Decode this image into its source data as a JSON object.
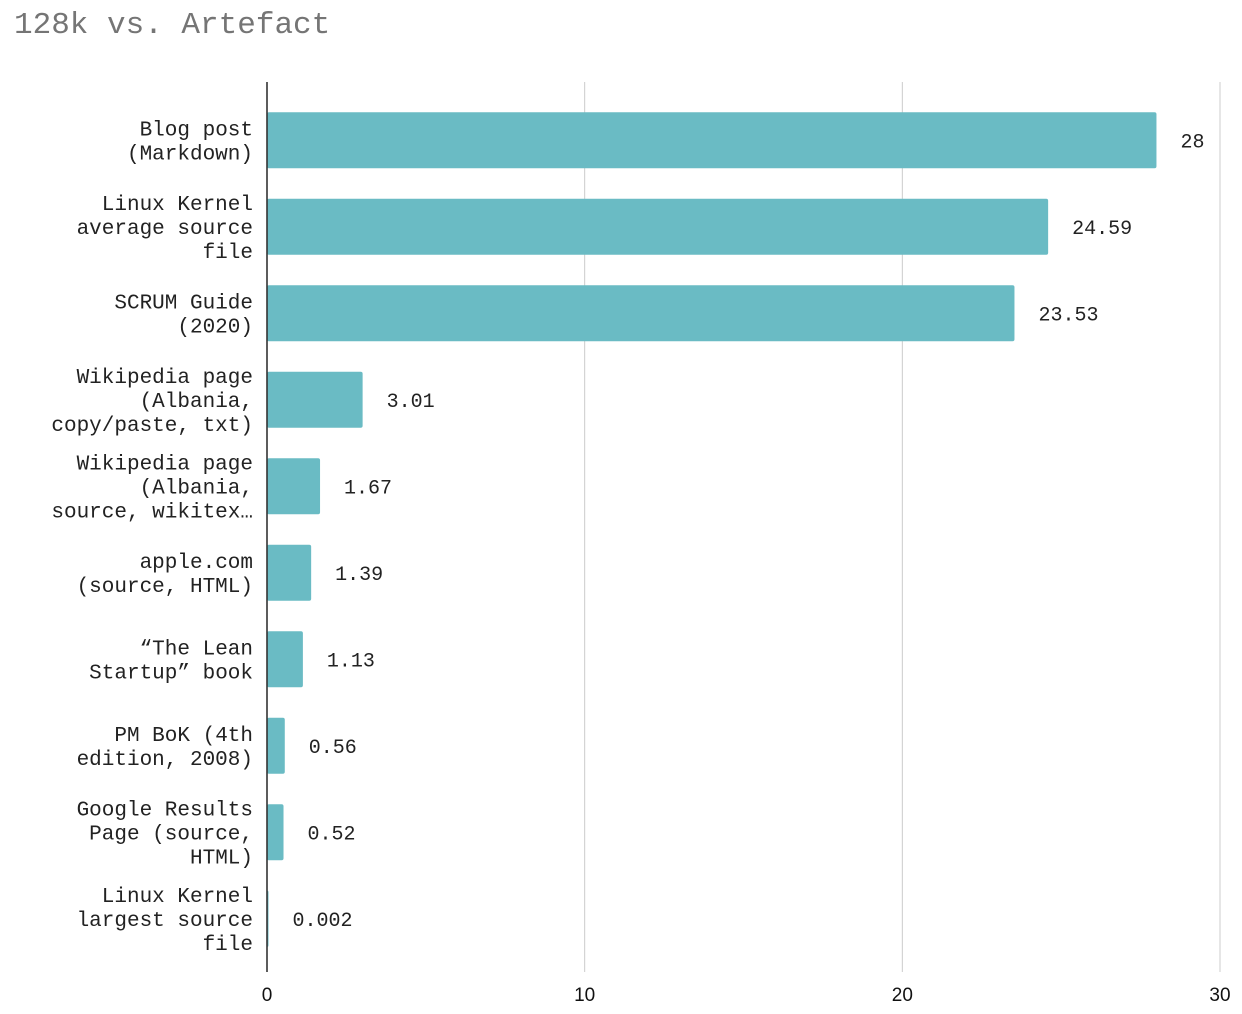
{
  "chart_data": {
    "type": "bar",
    "orientation": "horizontal",
    "title": "128k vs. Artefact",
    "xlabel": "",
    "ylabel": "",
    "xlim": [
      0,
      30
    ],
    "x_ticks": [
      "0",
      "10",
      "20",
      "30"
    ],
    "grid": "vertical",
    "legend": "none",
    "bar_color": "#6abbc4",
    "categories": [
      [
        "Blog post",
        "(Markdown)"
      ],
      [
        "Linux Kernel",
        "average source",
        "file"
      ],
      [
        "SCRUM Guide",
        "(2020)"
      ],
      [
        "Wikipedia page",
        "(Albania,",
        "copy/paste, txt)"
      ],
      [
        "Wikipedia page",
        "(Albania,",
        "source, wikitex…"
      ],
      [
        "apple.com",
        "(source, HTML)"
      ],
      [
        "“The Lean",
        "Startup” book"
      ],
      [
        "PM BoK (4th",
        "edition, 2008)"
      ],
      [
        "Google Results",
        "Page (source,",
        "HTML)"
      ],
      [
        "Linux Kernel",
        "largest source",
        "file"
      ]
    ],
    "values": [
      28,
      24.59,
      23.53,
      3.01,
      1.67,
      1.39,
      1.13,
      0.56,
      0.52,
      0.002
    ],
    "value_labels": [
      "28",
      "24.59",
      "23.53",
      "3.01",
      "1.67",
      "1.39",
      "1.13",
      "0.56",
      "0.52",
      "0.002"
    ]
  }
}
